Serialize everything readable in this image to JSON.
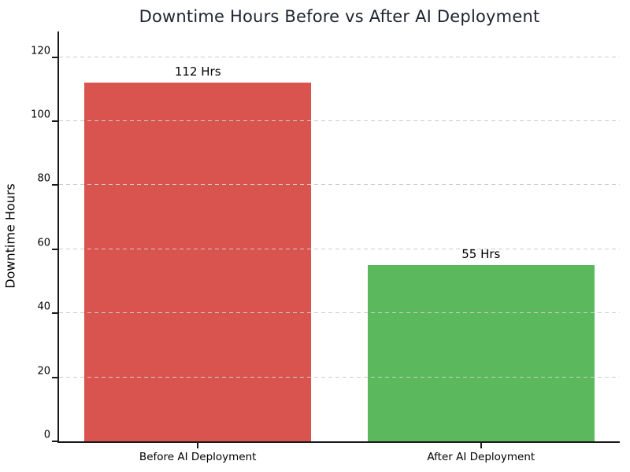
{
  "chart_data": {
    "type": "bar",
    "title": "Downtime Hours Before vs After AI Deployment",
    "xlabel": "",
    "ylabel": "Downtime Hours",
    "categories": [
      "Before AI Deployment",
      "After AI Deployment"
    ],
    "values": [
      112,
      55
    ],
    "value_labels": [
      "112 Hrs",
      "55 Hrs"
    ],
    "bar_colors": [
      "#d9534f",
      "#5cb85c"
    ],
    "yticks": [
      0,
      20,
      40,
      60,
      80,
      100,
      120
    ],
    "ylim": [
      0,
      128
    ],
    "grid": "horizontal dashed, drawn above bars",
    "grid_color": "#cccccc",
    "title_color": "#1f2430",
    "axis_color": "#1a1a1a",
    "legend": "none",
    "background": "#ffffff"
  }
}
